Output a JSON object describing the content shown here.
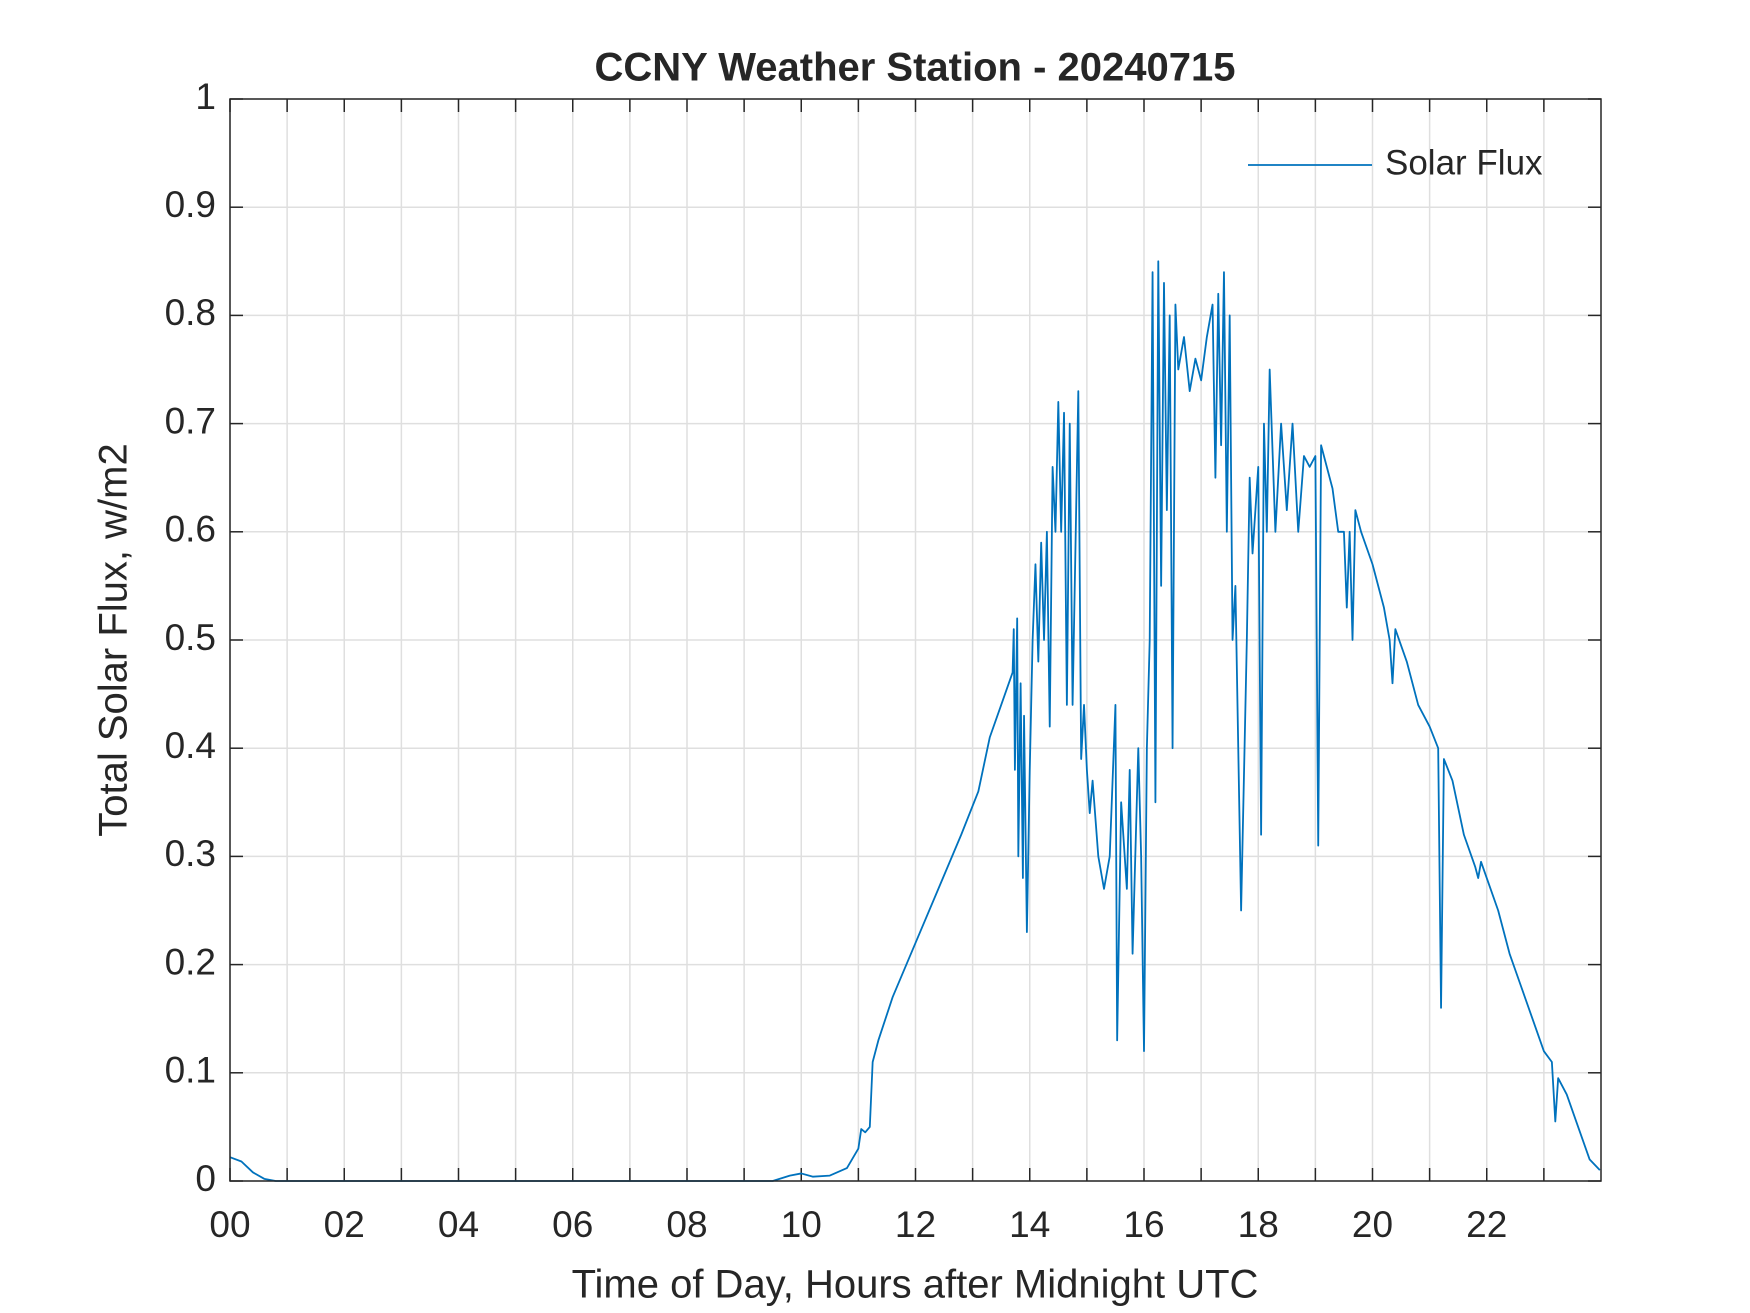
{
  "chart_data": {
    "type": "line",
    "title": "CCNY Weather Station - 20240715",
    "xlabel": "Time of Day, Hours after Midnight UTC",
    "ylabel": "Total Solar Flux, w/m2",
    "xlim": [
      0,
      24
    ],
    "ylim": [
      0,
      1
    ],
    "xticks": [
      {
        "value": 0,
        "label": "00"
      },
      {
        "value": 2,
        "label": "02"
      },
      {
        "value": 4,
        "label": "04"
      },
      {
        "value": 6,
        "label": "06"
      },
      {
        "value": 8,
        "label": "08"
      },
      10,
      12,
      14,
      16,
      18,
      20,
      22
    ],
    "xminor_ticks": [
      1,
      3,
      5,
      7,
      9,
      11,
      13,
      15,
      17,
      19,
      21,
      23
    ],
    "yticks": [
      0,
      0.1,
      0.2,
      0.3,
      0.4,
      0.5,
      0.6,
      0.7,
      0.8,
      0.9,
      1
    ],
    "grid": true,
    "legend": "northeast",
    "series": [
      {
        "name": "Solar Flux",
        "color": "#0072bd",
        "x": [
          0,
          0.2,
          0.4,
          0.6,
          0.8,
          1,
          9.5,
          9.8,
          10,
          10.2,
          10.5,
          10.8,
          11,
          11.05,
          11.12,
          11.2,
          11.25,
          11.35,
          11.6,
          12,
          12.4,
          12.8,
          13.1,
          13.3,
          13.5,
          13.7,
          13.72,
          13.74,
          13.78,
          13.8,
          13.84,
          13.88,
          13.9,
          13.95,
          14,
          14.05,
          14.1,
          14.15,
          14.2,
          14.25,
          14.3,
          14.35,
          14.4,
          14.45,
          14.5,
          14.55,
          14.6,
          14.65,
          14.7,
          14.75,
          14.85,
          14.9,
          14.95,
          15,
          15.05,
          15.1,
          15.2,
          15.3,
          15.4,
          15.5,
          15.53,
          15.6,
          15.7,
          15.75,
          15.8,
          15.9,
          15.95,
          16,
          16.05,
          16.1,
          16.15,
          16.2,
          16.25,
          16.3,
          16.35,
          16.4,
          16.45,
          16.5,
          16.55,
          16.6,
          16.7,
          16.8,
          16.9,
          17,
          17.1,
          17.2,
          17.25,
          17.3,
          17.35,
          17.4,
          17.45,
          17.5,
          17.55,
          17.6,
          17.7,
          17.8,
          17.85,
          17.9,
          18,
          18.05,
          18.1,
          18.15,
          18.2,
          18.3,
          18.4,
          18.5,
          18.6,
          18.7,
          18.8,
          18.9,
          19,
          19.05,
          19.1,
          19.3,
          19.4,
          19.5,
          19.55,
          19.6,
          19.65,
          19.7,
          19.8,
          20,
          20.2,
          20.3,
          20.35,
          20.4,
          20.6,
          20.8,
          21,
          21.15,
          21.2,
          21.25,
          21.4,
          21.6,
          21.8,
          21.85,
          21.9,
          22,
          22.2,
          22.4,
          22.6,
          22.8,
          23,
          23.14,
          23.2,
          23.25,
          23.4,
          23.6,
          23.8,
          23.98
        ],
        "values": [
          0.022,
          0.018,
          0.008,
          0.002,
          0,
          0,
          0,
          0.005,
          0.007,
          0.004,
          0.005,
          0.012,
          0.03,
          0.048,
          0.045,
          0.05,
          0.11,
          0.13,
          0.17,
          0.22,
          0.27,
          0.32,
          0.36,
          0.41,
          0.44,
          0.47,
          0.51,
          0.38,
          0.52,
          0.3,
          0.46,
          0.28,
          0.43,
          0.23,
          0.38,
          0.5,
          0.57,
          0.48,
          0.59,
          0.5,
          0.6,
          0.42,
          0.66,
          0.6,
          0.72,
          0.6,
          0.71,
          0.44,
          0.7,
          0.44,
          0.73,
          0.39,
          0.44,
          0.38,
          0.34,
          0.37,
          0.3,
          0.27,
          0.3,
          0.44,
          0.13,
          0.35,
          0.27,
          0.38,
          0.21,
          0.4,
          0.3,
          0.12,
          0.4,
          0.5,
          0.84,
          0.35,
          0.85,
          0.55,
          0.83,
          0.62,
          0.8,
          0.4,
          0.81,
          0.75,
          0.78,
          0.73,
          0.76,
          0.74,
          0.78,
          0.81,
          0.65,
          0.82,
          0.68,
          0.84,
          0.6,
          0.8,
          0.5,
          0.55,
          0.25,
          0.5,
          0.65,
          0.58,
          0.66,
          0.32,
          0.7,
          0.6,
          0.75,
          0.6,
          0.7,
          0.62,
          0.7,
          0.6,
          0.67,
          0.66,
          0.67,
          0.31,
          0.68,
          0.64,
          0.6,
          0.6,
          0.53,
          0.6,
          0.5,
          0.62,
          0.6,
          0.57,
          0.53,
          0.5,
          0.46,
          0.51,
          0.48,
          0.44,
          0.42,
          0.4,
          0.16,
          0.39,
          0.37,
          0.32,
          0.29,
          0.28,
          0.295,
          0.28,
          0.25,
          0.21,
          0.18,
          0.15,
          0.12,
          0.11,
          0.055,
          0.095,
          0.08,
          0.05,
          0.02,
          0.01
        ]
      }
    ]
  }
}
